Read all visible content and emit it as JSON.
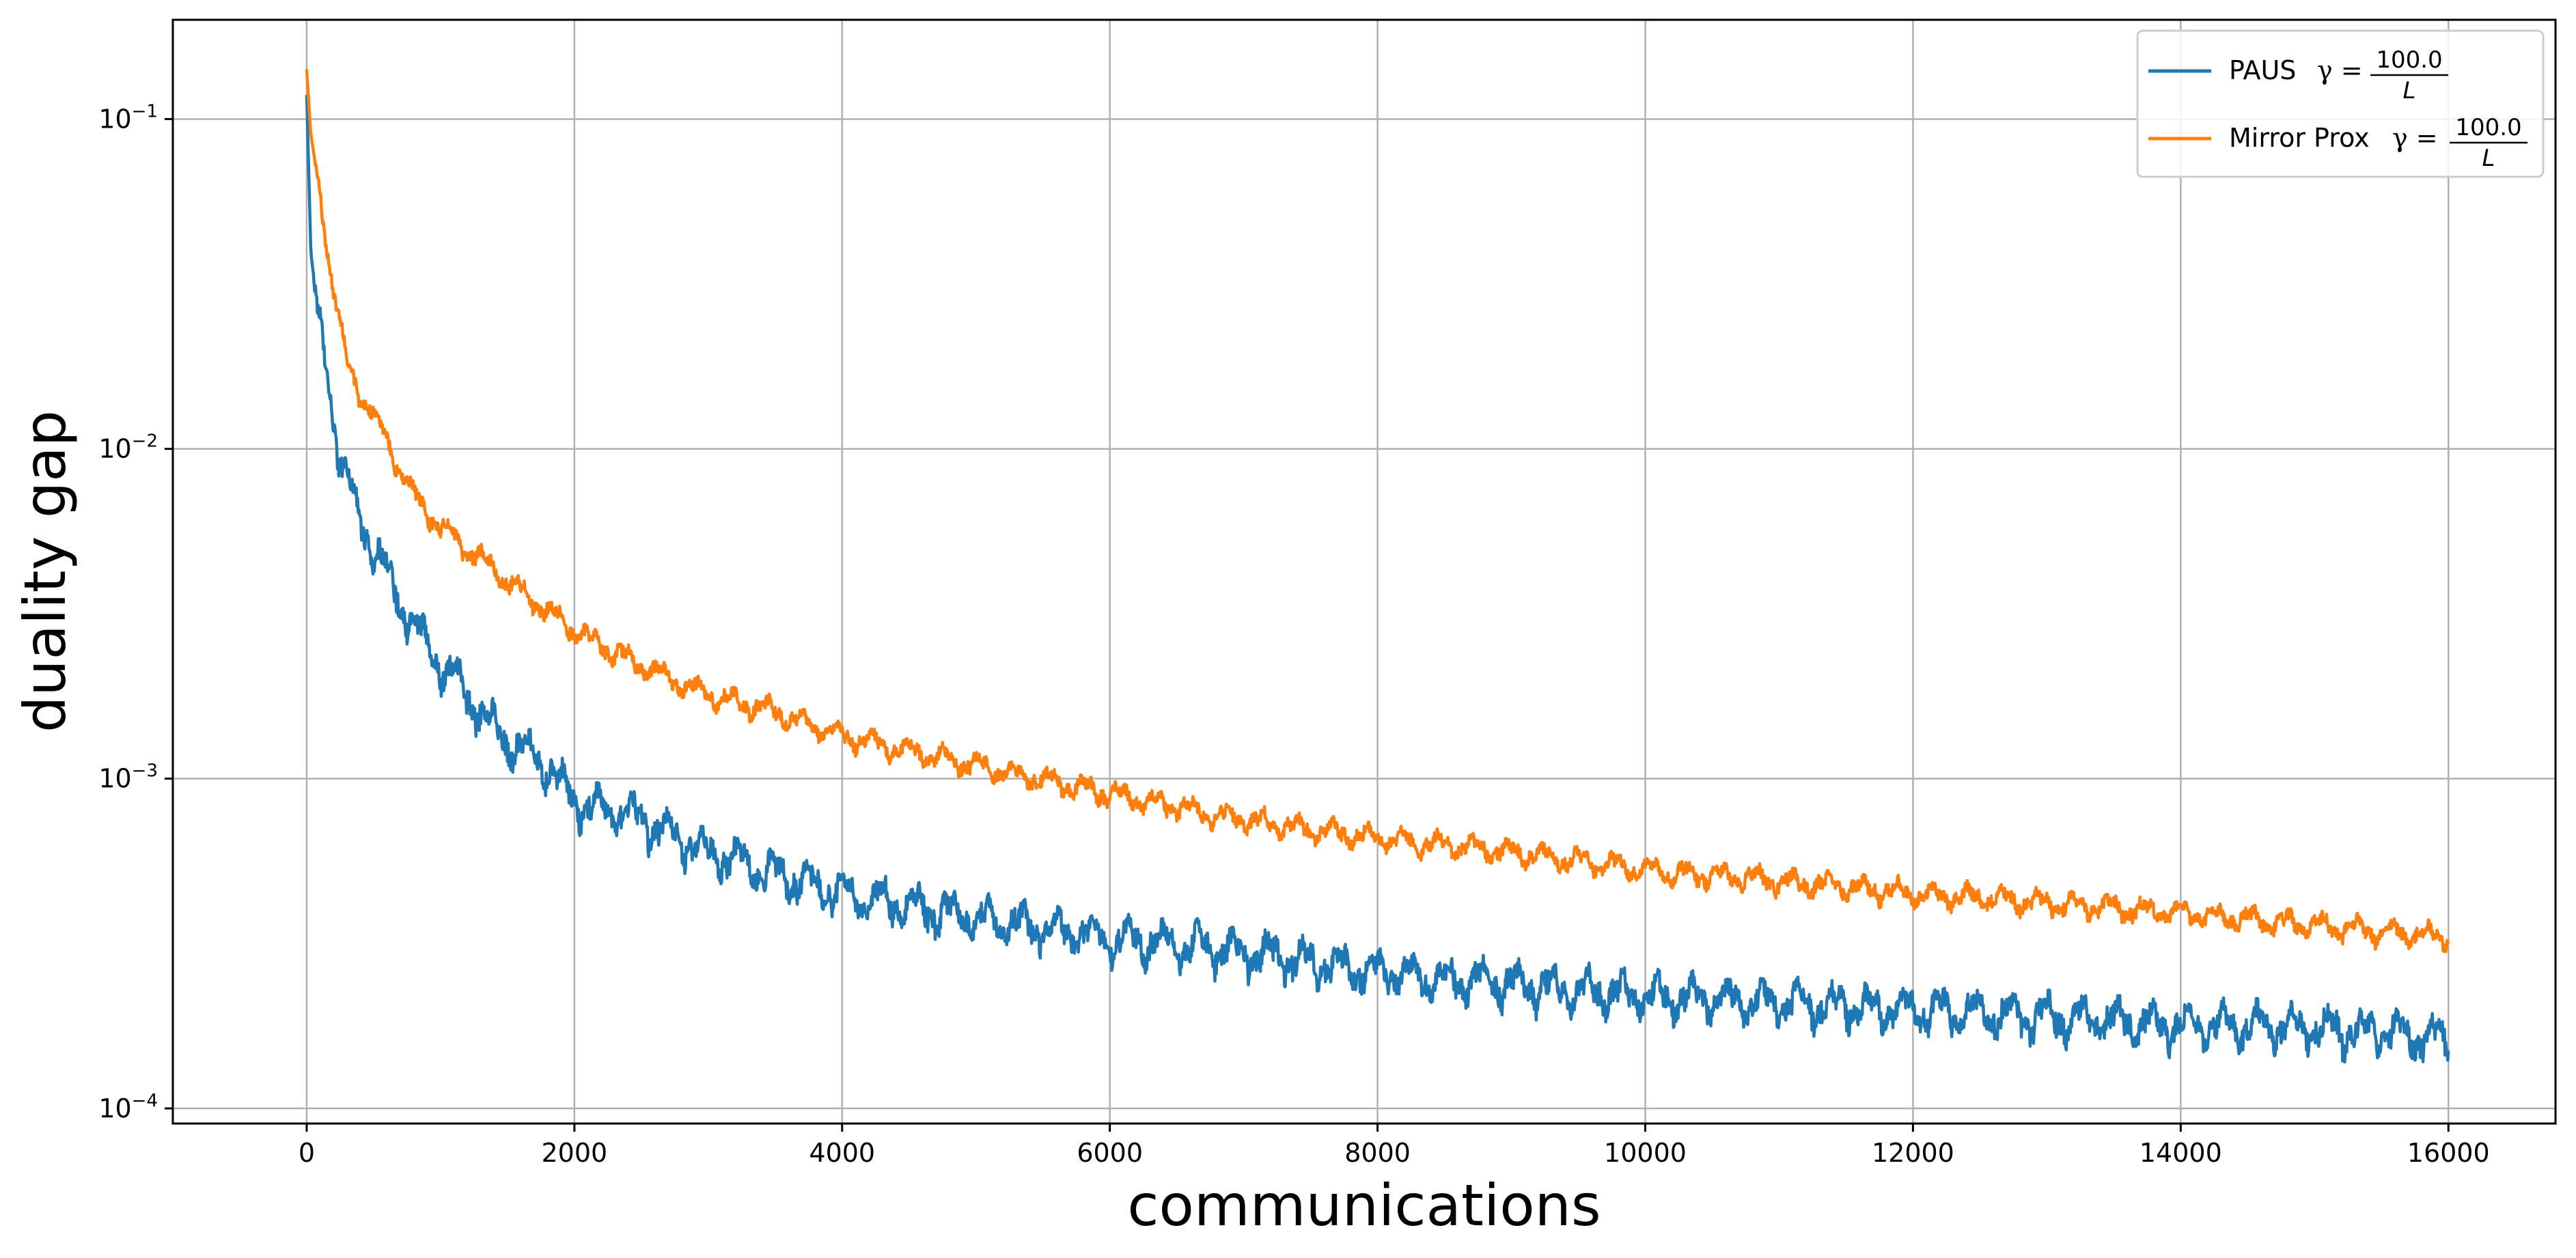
{
  "chart_data": {
    "type": "line",
    "xlabel": "communications",
    "ylabel": "duality gap",
    "xlim": [
      -1000,
      16800
    ],
    "ylim": [
      9e-05,
      0.2
    ],
    "yscale": "log",
    "grid": true,
    "legend_position": "top-right",
    "x_ticks": [
      0,
      2000,
      4000,
      6000,
      8000,
      10000,
      12000,
      14000,
      16000
    ],
    "x_tick_labels": [
      "0",
      "2000",
      "4000",
      "6000",
      "8000",
      "10000",
      "12000",
      "14000",
      "16000"
    ],
    "y_ticks": [
      {
        "value": 0.1,
        "base": "10",
        "exp": "−1"
      },
      {
        "value": 0.01,
        "base": "10",
        "exp": "−2"
      },
      {
        "value": 0.001,
        "base": "10",
        "exp": "−3"
      },
      {
        "value": 0.0001,
        "base": "10",
        "exp": "−4"
      }
    ],
    "series": [
      {
        "name": "PAUS γ = 100.0/L",
        "legend_prefix": "PAUS",
        "legend_gamma": "γ =",
        "legend_numerator": "100.0",
        "legend_denominator": "L",
        "color": "#1f77b4",
        "osc_amp_rel": 0.18,
        "x": [
          0,
          30,
          80,
          150,
          250,
          350,
          500,
          700,
          900,
          1200,
          1500,
          1800,
          2000,
          2500,
          3000,
          3500,
          4000,
          5000,
          6000,
          7000,
          8000,
          9000,
          10000,
          11000,
          12000,
          13000,
          14000,
          15000,
          16000
        ],
        "values": [
          0.12,
          0.04,
          0.025,
          0.018,
          0.009,
          0.007,
          0.005,
          0.0035,
          0.0025,
          0.0018,
          0.0013,
          0.0011,
          0.00085,
          0.00075,
          0.0006,
          0.00052,
          0.00045,
          0.00038,
          0.00033,
          0.0003,
          0.00026,
          0.00024,
          0.00022,
          0.00021,
          0.0002,
          0.00019,
          0.00018,
          0.000175,
          0.000165
        ]
      },
      {
        "name": "Mirror Prox γ = 100.0/L",
        "legend_prefix": "Mirror Prox",
        "legend_gamma": "γ =",
        "legend_numerator": "100.0",
        "legend_denominator": "L",
        "color": "#ff7f0e",
        "osc_amp_rel": 0.1,
        "x": [
          0,
          30,
          100,
          200,
          300,
          400,
          600,
          800,
          1000,
          1500,
          2000,
          2500,
          3000,
          3500,
          4000,
          5000,
          6000,
          7000,
          8000,
          9000,
          10000,
          11000,
          12000,
          13000,
          14000,
          15000,
          16000
        ],
        "values": [
          0.14,
          0.09,
          0.06,
          0.03,
          0.018,
          0.015,
          0.0105,
          0.0072,
          0.0058,
          0.004,
          0.0028,
          0.0022,
          0.0018,
          0.0016,
          0.00135,
          0.0011,
          0.0009,
          0.00075,
          0.00066,
          0.0006,
          0.00053,
          0.00049,
          0.00045,
          0.00042,
          0.00039,
          0.00036,
          0.00033
        ]
      }
    ]
  }
}
